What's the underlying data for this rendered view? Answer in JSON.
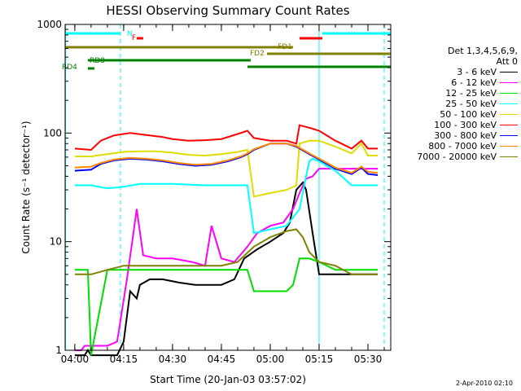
{
  "chart_data": {
    "type": "line",
    "title": "HESSI Observing Summary Count Rates",
    "xlabel": "Start Time (20-Jan-03 03:57:02)",
    "ylabel": "Count Rate (s⁻¹ detector⁻¹)",
    "y_scale": "log",
    "xlim": [
      "03:57:02",
      "05:37:00"
    ],
    "ylim": [
      1,
      1000
    ],
    "x_ticks": [
      "04:00",
      "04:15",
      "04:30",
      "04:45",
      "05:00",
      "05:15",
      "05:30"
    ],
    "y_ticks": [
      "1",
      "10",
      "100",
      "1000"
    ],
    "legend_header": [
      "Det 1,3,4,5,6,9,",
      "Att 0"
    ],
    "legend_position": "right",
    "series": [
      {
        "name": "3 - 6 keV",
        "color": "#000000",
        "x": [
          "04:00",
          "04:03",
          "04:04",
          "04:05",
          "04:07",
          "04:10",
          "04:13",
          "04:15",
          "04:17",
          "04:19",
          "04:20",
          "04:23",
          "04:27",
          "04:32",
          "04:37",
          "04:40",
          "04:45",
          "04:49",
          "04:52",
          "04:56",
          "05:00",
          "05:04",
          "05:06",
          "05:08",
          "05:10",
          "05:11",
          "05:13",
          "05:15",
          "05:20",
          "05:25",
          "05:30",
          "05:33"
        ],
        "y": [
          0.9,
          0.9,
          1.0,
          0.9,
          0.9,
          0.9,
          0.9,
          1.2,
          3.5,
          3.0,
          4.0,
          4.5,
          4.5,
          4.2,
          4.0,
          4.0,
          4.0,
          4.5,
          7.0,
          8.5,
          10,
          12,
          15,
          30,
          35,
          30,
          12,
          5,
          5,
          5,
          5,
          5
        ]
      },
      {
        "name": "6 - 12 keV",
        "color": "#ff00ff",
        "x": [
          "04:00",
          "04:02",
          "04:03",
          "04:04",
          "04:06",
          "04:08",
          "04:10",
          "04:13",
          "04:16",
          "04:18",
          "04:19",
          "04:21",
          "04:25",
          "04:30",
          "04:36",
          "04:40",
          "04:42",
          "04:45",
          "04:49",
          "04:53",
          "04:56",
          "05:00",
          "05:04",
          "05:07",
          "05:09",
          "05:11",
          "05:13",
          "05:15",
          "05:20",
          "05:25",
          "05:30",
          "05:33"
        ],
        "y": [
          1.0,
          1.0,
          1.1,
          1.1,
          1.1,
          1.1,
          1.1,
          1.2,
          4.5,
          12,
          20,
          7.5,
          7,
          7,
          6.5,
          6,
          14,
          7,
          6.5,
          9,
          12,
          14,
          15,
          20,
          28,
          38,
          40,
          47,
          47,
          47,
          47,
          47
        ]
      },
      {
        "name": "12 - 25 keV",
        "color": "#00dd00",
        "x": [
          "04:00",
          "04:02",
          "04:04",
          "04:05",
          "04:10",
          "04:15",
          "04:20",
          "04:25",
          "04:30",
          "04:40",
          "04:50",
          "04:53",
          "04:55",
          "05:00",
          "05:05",
          "05:07",
          "05:09",
          "05:12",
          "05:15",
          "05:20",
          "05:25",
          "05:30",
          "05:33"
        ],
        "y": [
          5.5,
          5.5,
          5.5,
          0.9,
          5.5,
          5.5,
          5.5,
          5.5,
          5.5,
          5.5,
          5.5,
          5.5,
          3.5,
          3.5,
          3.5,
          4,
          7,
          7,
          6.5,
          5.5,
          5.5,
          5.5,
          5.5
        ]
      },
      {
        "name": "25 - 50 keV",
        "color": "#00ffff",
        "x": [
          "04:00",
          "04:02",
          "04:03",
          "04:04",
          "04:05",
          "04:10",
          "04:15",
          "04:20",
          "04:30",
          "04:40",
          "04:45",
          "04:50",
          "04:53",
          "04:55",
          "05:00",
          "05:05",
          "05:09",
          "05:11",
          "05:12",
          "05:13",
          "05:15",
          "05:20",
          "05:25",
          "05:30",
          "05:33"
        ],
        "y": [
          33,
          33,
          33,
          33,
          33,
          31,
          32,
          34,
          34,
          33,
          33,
          33,
          33,
          12,
          13,
          14,
          20,
          40,
          55,
          58,
          55,
          45,
          33,
          33,
          33
        ]
      },
      {
        "name": "50 - 100 keV",
        "color": "#dddd00",
        "x": [
          "04:00",
          "04:05",
          "04:10",
          "04:15",
          "04:20",
          "04:25",
          "04:30",
          "04:35",
          "04:40",
          "04:45",
          "04:50",
          "04:53",
          "04:55",
          "05:00",
          "05:05",
          "05:08",
          "05:09",
          "05:12",
          "05:15",
          "05:20",
          "05:25",
          "05:28",
          "05:30",
          "05:33"
        ],
        "y": [
          61,
          61,
          64,
          67,
          68,
          68,
          66,
          63,
          62,
          64,
          67,
          70,
          26,
          28,
          30,
          33,
          80,
          85,
          85,
          75,
          65,
          80,
          62,
          62
        ]
      },
      {
        "name": "100 - 300 keV",
        "color": "#ff0000",
        "x": [
          "04:00",
          "04:05",
          "04:08",
          "04:12",
          "04:17",
          "04:22",
          "04:27",
          "04:30",
          "04:35",
          "04:40",
          "04:45",
          "04:50",
          "04:53",
          "04:55",
          "05:00",
          "05:05",
          "05:08",
          "05:09",
          "05:12",
          "05:15",
          "05:20",
          "05:25",
          "05:28",
          "05:30",
          "05:33"
        ],
        "y": [
          72,
          70,
          85,
          95,
          100,
          96,
          92,
          88,
          85,
          86,
          88,
          98,
          105,
          90,
          85,
          85,
          80,
          118,
          112,
          105,
          85,
          72,
          85,
          72,
          72
        ]
      },
      {
        "name": "300 - 800 keV",
        "color": "#0000ff",
        "x": [
          "04:00",
          "04:05",
          "04:08",
          "04:12",
          "04:17",
          "04:22",
          "04:27",
          "04:32",
          "04:37",
          "04:42",
          "04:47",
          "04:51",
          "04:53",
          "04:55",
          "05:00",
          "05:05",
          "05:08",
          "05:12",
          "05:16",
          "05:20",
          "05:25",
          "05:28",
          "05:30",
          "05:33"
        ],
        "y": [
          45,
          46,
          52,
          56,
          58,
          57,
          55,
          52,
          50,
          51,
          55,
          60,
          64,
          70,
          80,
          80,
          75,
          64,
          55,
          47,
          42,
          48,
          42,
          41
        ]
      },
      {
        "name": "800 - 7000 keV",
        "color": "#ff8800",
        "x": [
          "04:00",
          "04:05",
          "04:08",
          "04:12",
          "04:17",
          "04:22",
          "04:27",
          "04:32",
          "04:37",
          "04:42",
          "04:47",
          "04:51",
          "04:53",
          "04:55",
          "05:00",
          "05:05",
          "05:08",
          "05:12",
          "05:16",
          "05:20",
          "05:25",
          "05:28",
          "05:30",
          "05:33"
        ],
        "y": [
          48,
          49,
          53,
          57,
          59,
          58,
          56,
          53,
          51,
          52,
          56,
          61,
          65,
          71,
          80,
          80,
          76,
          65,
          56,
          48,
          43,
          49,
          44,
          43
        ]
      },
      {
        "name": "7000 - 20000 keV",
        "color": "#808000",
        "x": [
          "04:00",
          "04:05",
          "04:10",
          "04:15",
          "04:20",
          "04:25",
          "04:30",
          "04:35",
          "04:40",
          "04:45",
          "04:50",
          "04:55",
          "05:00",
          "05:05",
          "05:08",
          "05:10",
          "05:12",
          "05:15",
          "05:20",
          "05:25",
          "05:30",
          "05:33"
        ],
        "y": [
          5,
          5,
          5.5,
          6,
          6,
          6,
          6,
          6,
          6,
          6,
          6.5,
          9,
          11,
          12.5,
          13,
          11,
          8,
          6.5,
          6,
          5,
          5,
          5
        ]
      }
    ],
    "annotations": {
      "markers": [
        {
          "label": "N",
          "color": "#00ffff"
        },
        {
          "label": "F",
          "color": "#ff0000"
        },
        {
          "label": "FD1",
          "color": "#808000"
        },
        {
          "label": "FD2",
          "color": "#808000"
        },
        {
          "label": "RD8",
          "color": "#008000"
        },
        {
          "label": "RD4",
          "color": "#008000"
        }
      ],
      "bars": [
        {
          "color": "#00ffff",
          "from": "03:57:02",
          "to": "04:14"
        },
        {
          "color": "#00ffff",
          "from": "05:16",
          "to": "05:37"
        },
        {
          "color": "#ff0000",
          "from": "04:19",
          "to": "04:21"
        },
        {
          "color": "#ff0000",
          "from": "05:09",
          "to": "05:16"
        },
        {
          "color": "#808000",
          "from": "03:57:02",
          "to": "05:07"
        },
        {
          "color": "#808000",
          "from": "04:59",
          "to": "05:37"
        },
        {
          "color": "#008000",
          "from": "04:04",
          "to": "04:54"
        },
        {
          "color": "#008000",
          "from": "05:07",
          "to": "05:37"
        },
        {
          "color": "#008000",
          "from": "04:53",
          "to": "05:08"
        },
        {
          "color": "#008000",
          "from": "04:04",
          "to": "04:06"
        }
      ],
      "vlines_solid": [
        "03:57:10",
        "05:15"
      ],
      "vlines_dashed": [
        "04:14",
        "05:35"
      ]
    }
  },
  "timestamp": "2-Apr-2010 02:10"
}
